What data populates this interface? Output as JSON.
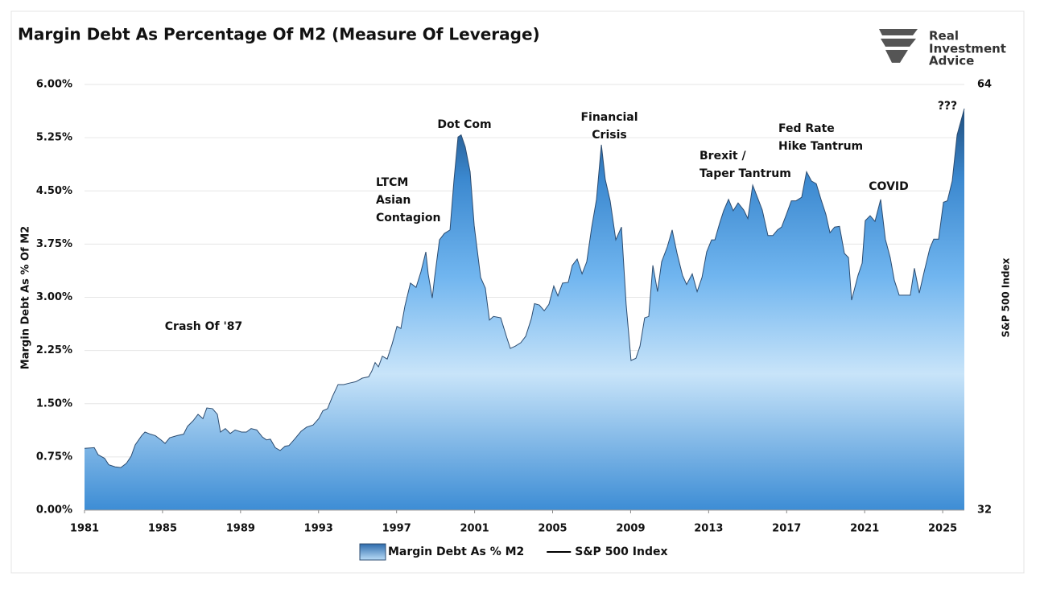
{
  "chart_data": {
    "type": "area",
    "title": "Margin Debt As Percentage Of M2 (Measure Of Leverage)",
    "brand": [
      "Real",
      "Investment",
      "Advice"
    ],
    "y_label": "Margin Debt As % Of M2",
    "y2_label": "S&P 500 Index",
    "x": [
      1981.0,
      1981.5,
      1981.7,
      1982.03,
      1982.24,
      1982.57,
      1982.86,
      1983.15,
      1983.39,
      1983.6,
      1983.93,
      1984.1,
      1984.38,
      1984.63,
      1984.92,
      1985.13,
      1985.37,
      1985.75,
      1986.08,
      1986.28,
      1986.57,
      1986.82,
      1987.07,
      1987.27,
      1987.56,
      1987.81,
      1987.97,
      1988.22,
      1988.47,
      1988.72,
      1989.05,
      1989.3,
      1989.54,
      1989.83,
      1990.12,
      1990.33,
      1990.53,
      1990.78,
      1991.03,
      1991.28,
      1991.48,
      1991.77,
      1992.1,
      1992.39,
      1992.72,
      1993.01,
      1993.22,
      1993.46,
      1993.71,
      1994.0,
      1994.29,
      1994.58,
      1994.91,
      1995.24,
      1995.57,
      1995.73,
      1995.9,
      1996.07,
      1996.27,
      1996.52,
      1996.77,
      1997.02,
      1997.22,
      1997.43,
      1997.71,
      1998.0,
      1998.25,
      1998.5,
      1998.62,
      1998.83,
      1998.95,
      1999.2,
      1999.45,
      1999.74,
      1999.94,
      2000.15,
      2000.31,
      2000.52,
      2000.77,
      2000.98,
      2001.31,
      2001.55,
      2001.76,
      2001.97,
      2002.34,
      2002.63,
      2002.83,
      2003.08,
      2003.37,
      2003.62,
      2003.91,
      2004.07,
      2004.32,
      2004.57,
      2004.81,
      2005.06,
      2005.27,
      2005.51,
      2005.8,
      2006.01,
      2006.26,
      2006.51,
      2006.75,
      2007.0,
      2007.25,
      2007.5,
      2007.7,
      2007.95,
      2008.24,
      2008.53,
      2008.77,
      2009.02,
      2009.27,
      2009.48,
      2009.72,
      2009.93,
      2010.14,
      2010.38,
      2010.59,
      2010.88,
      2011.13,
      2011.38,
      2011.66,
      2011.87,
      2012.16,
      2012.41,
      2012.66,
      2012.9,
      2013.15,
      2013.32,
      2013.56,
      2013.77,
      2014.02,
      2014.26,
      2014.51,
      2014.8,
      2015.01,
      2015.26,
      2015.5,
      2015.75,
      2016.04,
      2016.29,
      2016.53,
      2016.74,
      2016.99,
      2017.24,
      2017.48,
      2017.77,
      2018.02,
      2018.27,
      2018.52,
      2018.76,
      2019.01,
      2019.22,
      2019.46,
      2019.71,
      2019.96,
      2020.17,
      2020.33,
      2020.66,
      2020.87,
      2021.03,
      2021.28,
      2021.53,
      2021.82,
      2022.06,
      2022.31,
      2022.52,
      2022.77,
      2023.06,
      2023.34,
      2023.55,
      2023.8,
      2024.05,
      2024.34,
      2024.54,
      2024.79,
      2025.04,
      2025.24,
      2025.49,
      2025.74,
      2026.11
    ],
    "series": [
      {
        "name": "Margin Debt As % M2",
        "color": "#4a9be0",
        "values": [
          0.87,
          0.88,
          0.78,
          0.73,
          0.64,
          0.61,
          0.6,
          0.66,
          0.76,
          0.92,
          1.05,
          1.1,
          1.07,
          1.05,
          0.99,
          0.94,
          1.02,
          1.05,
          1.07,
          1.18,
          1.26,
          1.35,
          1.29,
          1.44,
          1.43,
          1.35,
          1.1,
          1.15,
          1.08,
          1.13,
          1.1,
          1.1,
          1.15,
          1.13,
          1.03,
          0.99,
          1.0,
          0.88,
          0.84,
          0.9,
          0.91,
          1.0,
          1.11,
          1.17,
          1.2,
          1.29,
          1.4,
          1.43,
          1.6,
          1.77,
          1.77,
          1.79,
          1.81,
          1.86,
          1.88,
          1.96,
          2.08,
          2.02,
          2.17,
          2.13,
          2.34,
          2.59,
          2.56,
          2.88,
          3.2,
          3.14,
          3.36,
          3.64,
          3.33,
          2.99,
          3.28,
          3.81,
          3.9,
          3.95,
          4.64,
          5.26,
          5.29,
          5.12,
          4.77,
          4.01,
          3.28,
          3.13,
          2.68,
          2.73,
          2.71,
          2.45,
          2.28,
          2.31,
          2.36,
          2.45,
          2.7,
          2.91,
          2.89,
          2.81,
          2.9,
          3.16,
          3.02,
          3.2,
          3.21,
          3.45,
          3.54,
          3.33,
          3.5,
          3.98,
          4.38,
          5.15,
          4.66,
          4.36,
          3.81,
          3.99,
          2.9,
          2.11,
          2.14,
          2.31,
          2.71,
          2.73,
          3.45,
          3.08,
          3.5,
          3.71,
          3.95,
          3.62,
          3.31,
          3.18,
          3.33,
          3.08,
          3.28,
          3.64,
          3.81,
          3.81,
          4.04,
          4.22,
          4.38,
          4.22,
          4.33,
          4.23,
          4.11,
          4.58,
          4.41,
          4.23,
          3.87,
          3.87,
          3.95,
          3.99,
          4.17,
          4.36,
          4.36,
          4.41,
          4.77,
          4.64,
          4.6,
          4.38,
          4.17,
          3.91,
          3.99,
          4.0,
          3.62,
          3.56,
          2.96,
          3.31,
          3.48,
          4.08,
          4.15,
          4.07,
          4.38,
          3.82,
          3.56,
          3.24,
          3.03,
          3.03,
          3.03,
          3.41,
          3.06,
          3.36,
          3.69,
          3.82,
          3.82,
          4.34,
          4.36,
          4.64,
          5.29,
          5.66
        ]
      },
      {
        "name": "S&P 500 Index",
        "color": "#000000",
        "axis": "y2"
      }
    ],
    "xlim": [
      1981,
      2026.11
    ],
    "xticks": [
      1981,
      1985,
      1989,
      1993,
      1997,
      2001,
      2005,
      2009,
      2013,
      2017,
      2021,
      2025
    ],
    "ylim": [
      0,
      6
    ],
    "yticks": [
      {
        "value": 0,
        "label": "0.00%"
      },
      {
        "value": 0.75,
        "label": "0.75%"
      },
      {
        "value": 1.5,
        "label": "1.50%"
      },
      {
        "value": 2.25,
        "label": "2.25%"
      },
      {
        "value": 3,
        "label": "3.00%"
      },
      {
        "value": 3.75,
        "label": "3.75%"
      },
      {
        "value": 4.5,
        "label": "4.50%"
      },
      {
        "value": 5.25,
        "label": "5.25%"
      },
      {
        "value": 6,
        "label": "6.00%"
      }
    ],
    "y2lim": [
      32,
      64
    ],
    "y2ticks": [
      32,
      64
    ],
    "grid": true,
    "legend": "bottom",
    "annotations": [
      [
        "Crash Of '87"
      ],
      [
        "LTCM",
        "Asian",
        "Contagion"
      ],
      [
        "Dot Com"
      ],
      [
        "Financial",
        "Crisis"
      ],
      [
        "Brexit /",
        "Taper Tantrum"
      ],
      [
        "Fed Rate",
        "Hike Tantrum"
      ],
      [
        "COVID"
      ],
      [
        "???"
      ]
    ]
  }
}
